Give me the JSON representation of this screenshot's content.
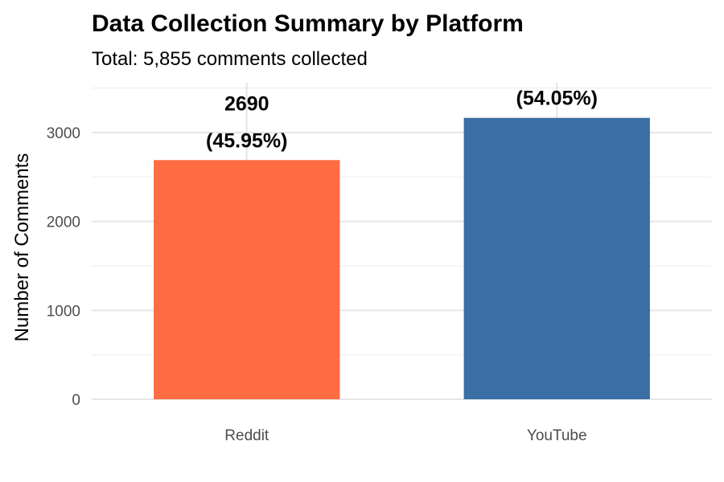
{
  "chart_data": {
    "type": "bar",
    "title": "Data Collection Summary by Platform",
    "subtitle": "Total: 5,855 comments collected",
    "xlabel": "",
    "ylabel": "Number of Comments",
    "categories": [
      "Reddit",
      "YouTube"
    ],
    "values": [
      2690,
      3165
    ],
    "colors": [
      "#FF6B42",
      "#3A6EA5"
    ],
    "data_labels": [
      {
        "count": "2690",
        "percent": "(45.95%)"
      },
      {
        "count": "",
        "percent": "(54.05%)"
      }
    ],
    "y_ticks": [
      0,
      1000,
      2000,
      3000
    ],
    "ylim": [
      0,
      3560
    ],
    "grid": true,
    "legend": "none"
  }
}
